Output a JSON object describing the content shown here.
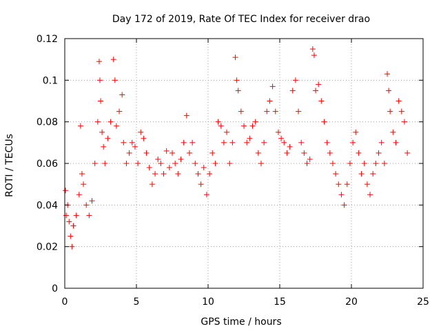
{
  "chart_data": {
    "type": "scatter",
    "title": "Day 172 of 2019, Rate Of TEC Index for receiver drao",
    "xlabel": "GPS time / hours",
    "ylabel": "ROTI / TECUs",
    "xlim": [
      0,
      25
    ],
    "ylim": [
      0,
      0.12
    ],
    "x_ticks": [
      0,
      5,
      10,
      15,
      20,
      25
    ],
    "y_ticks": [
      0,
      0.02,
      0.04,
      0.06,
      0.08,
      0.1,
      0.12
    ],
    "x_tick_labels": [
      "0",
      "5",
      "10",
      "15",
      "20",
      "25"
    ],
    "y_tick_labels": [
      "0",
      "0.02",
      "0.04",
      "0.06",
      "0.08",
      "0.1",
      "0.12"
    ],
    "grid": true,
    "marker": "+",
    "series": [
      {
        "color": "#ff0000",
        "x": [
          0.05,
          0.1,
          0.2,
          0.3,
          0.4,
          0.5,
          0.6,
          0.8,
          1.0,
          1.1,
          1.2,
          1.3,
          1.5,
          1.7,
          1.9,
          2.1,
          2.3,
          2.4,
          2.45,
          2.5,
          2.6,
          2.7,
          2.8,
          3.0,
          3.2,
          3.4,
          3.5,
          3.6,
          3.8,
          4.0,
          4.1,
          4.3,
          4.5,
          4.7,
          4.9,
          5.1,
          5.3,
          5.5,
          5.7,
          5.9,
          6.1,
          6.3,
          6.5,
          6.7,
          6.9,
          7.1,
          7.3,
          7.5,
          7.7,
          7.9,
          8.1,
          8.3,
          8.5,
          8.7,
          8.9,
          9.1,
          9.3,
          9.5,
          9.7,
          9.9,
          10.1,
          10.3,
          10.5,
          10.7,
          10.9,
          11.1,
          11.3,
          11.5,
          11.7,
          11.9,
          12.0,
          12.1,
          12.3,
          12.5,
          12.7,
          12.9,
          13.1,
          13.3,
          13.5,
          13.7,
          13.9,
          14.1,
          14.3,
          14.5,
          14.7,
          14.9,
          15.1,
          15.3,
          15.5,
          15.7,
          15.9,
          16.1,
          16.3,
          16.5,
          16.7,
          16.9,
          17.1,
          17.3,
          17.4,
          17.5,
          17.7,
          17.9,
          18.1,
          18.3,
          18.5,
          18.7,
          18.9,
          19.1,
          19.3,
          19.5,
          19.7,
          19.9,
          20.1,
          20.3,
          20.5,
          20.7,
          20.9,
          21.1,
          21.3,
          21.5,
          21.7,
          21.9,
          22.1,
          22.3,
          22.5,
          22.6,
          22.7,
          22.9,
          23.1,
          23.3,
          23.5,
          23.7,
          23.9
        ],
        "y": [
          0.047,
          0.035,
          0.04,
          0.032,
          0.025,
          0.02,
          0.03,
          0.035,
          0.045,
          0.078,
          0.055,
          0.05,
          0.04,
          0.035,
          0.042,
          0.06,
          0.08,
          0.109,
          0.1,
          0.09,
          0.075,
          0.068,
          0.06,
          0.072,
          0.08,
          0.11,
          0.1,
          0.078,
          0.085,
          0.093,
          0.07,
          0.06,
          0.065,
          0.07,
          0.068,
          0.06,
          0.075,
          0.072,
          0.065,
          0.058,
          0.05,
          0.055,
          0.062,
          0.06,
          0.055,
          0.066,
          0.058,
          0.065,
          0.06,
          0.055,
          0.062,
          0.07,
          0.083,
          0.065,
          0.07,
          0.06,
          0.055,
          0.05,
          0.058,
          0.045,
          0.055,
          0.065,
          0.06,
          0.08,
          0.078,
          0.07,
          0.075,
          0.06,
          0.07,
          0.111,
          0.1,
          0.095,
          0.085,
          0.078,
          0.07,
          0.072,
          0.078,
          0.08,
          0.065,
          0.06,
          0.07,
          0.085,
          0.09,
          0.097,
          0.085,
          0.075,
          0.072,
          0.07,
          0.065,
          0.068,
          0.095,
          0.1,
          0.085,
          0.07,
          0.065,
          0.06,
          0.062,
          0.115,
          0.112,
          0.095,
          0.098,
          0.09,
          0.08,
          0.07,
          0.065,
          0.06,
          0.055,
          0.05,
          0.045,
          0.04,
          0.05,
          0.06,
          0.07,
          0.075,
          0.065,
          0.055,
          0.06,
          0.05,
          0.045,
          0.055,
          0.06,
          0.065,
          0.07,
          0.06,
          0.103,
          0.095,
          0.085,
          0.075,
          0.07,
          0.09,
          0.085,
          0.08,
          0.065
        ]
      }
    ]
  }
}
